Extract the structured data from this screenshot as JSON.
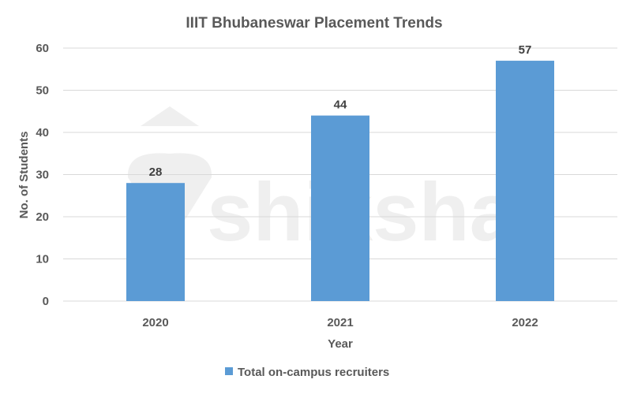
{
  "chart_data": {
    "type": "bar",
    "title": "IIIT Bhubaneswar Placement Trends",
    "xlabel": "Year",
    "ylabel": "No. of Students",
    "categories": [
      "2020",
      "2021",
      "2022"
    ],
    "series": [
      {
        "name": "Total on-campus recruiters",
        "values": [
          28,
          44,
          57
        ],
        "color": "#5b9bd5"
      }
    ],
    "ylim": [
      0,
      60
    ],
    "yticks": [
      "0",
      "10",
      "20",
      "30",
      "40",
      "50",
      "60"
    ],
    "data_labels": [
      "28",
      "44",
      "57"
    ],
    "grid": true,
    "legend": "bottom"
  },
  "watermark": "shiksha"
}
